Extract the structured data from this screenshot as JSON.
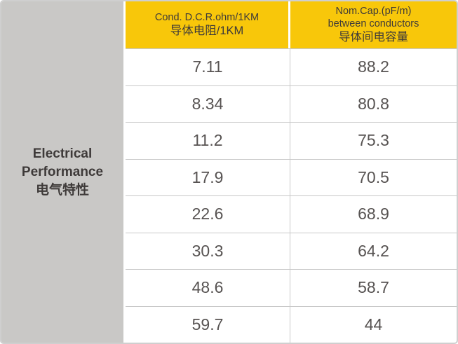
{
  "table": {
    "row_header": {
      "lines": [
        "Electrical",
        "Performance",
        "电气特性"
      ]
    },
    "columns": [
      {
        "lines": [
          "Cond. D.C.R.ohm/1KM",
          "导体电阻/1KM"
        ]
      },
      {
        "lines": [
          "Nom.Cap.(pF/m)",
          "between conductors",
          "导体间电容量"
        ]
      }
    ],
    "rows": [
      [
        "7.11",
        "88.2"
      ],
      [
        "8.34",
        "80.8"
      ],
      [
        "11.2",
        "75.3"
      ],
      [
        "17.9",
        "70.5"
      ],
      [
        "22.6",
        "68.9"
      ],
      [
        "30.3",
        "64.2"
      ],
      [
        "48.6",
        "58.7"
      ],
      [
        "59.7",
        "44"
      ]
    ]
  },
  "colors": {
    "header_background": "#f8c70a",
    "row_group_background": "#c9c8c6",
    "grid_line": "#c8c8c8",
    "header_text": "#3e3a39",
    "value_text": "#575352"
  }
}
